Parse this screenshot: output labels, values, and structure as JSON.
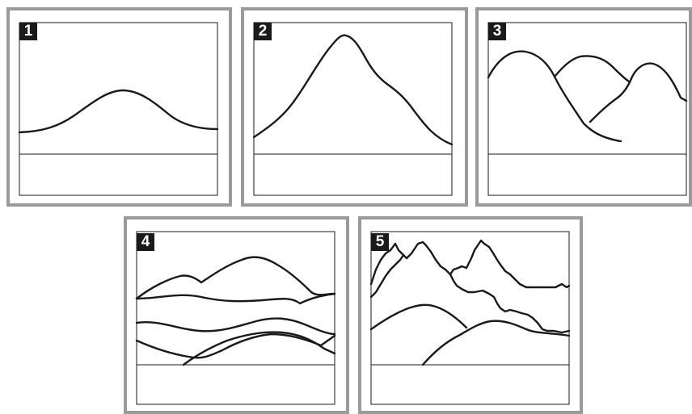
{
  "panels": [
    {
      "number": "1"
    },
    {
      "number": "2"
    },
    {
      "number": "3"
    },
    {
      "number": "4"
    },
    {
      "number": "5"
    }
  ],
  "colors": {
    "panel_border": "#9a9a9a",
    "line": "#1a1a1a",
    "badge_background": "#1a1a1a",
    "badge_text": "#ffffff"
  }
}
